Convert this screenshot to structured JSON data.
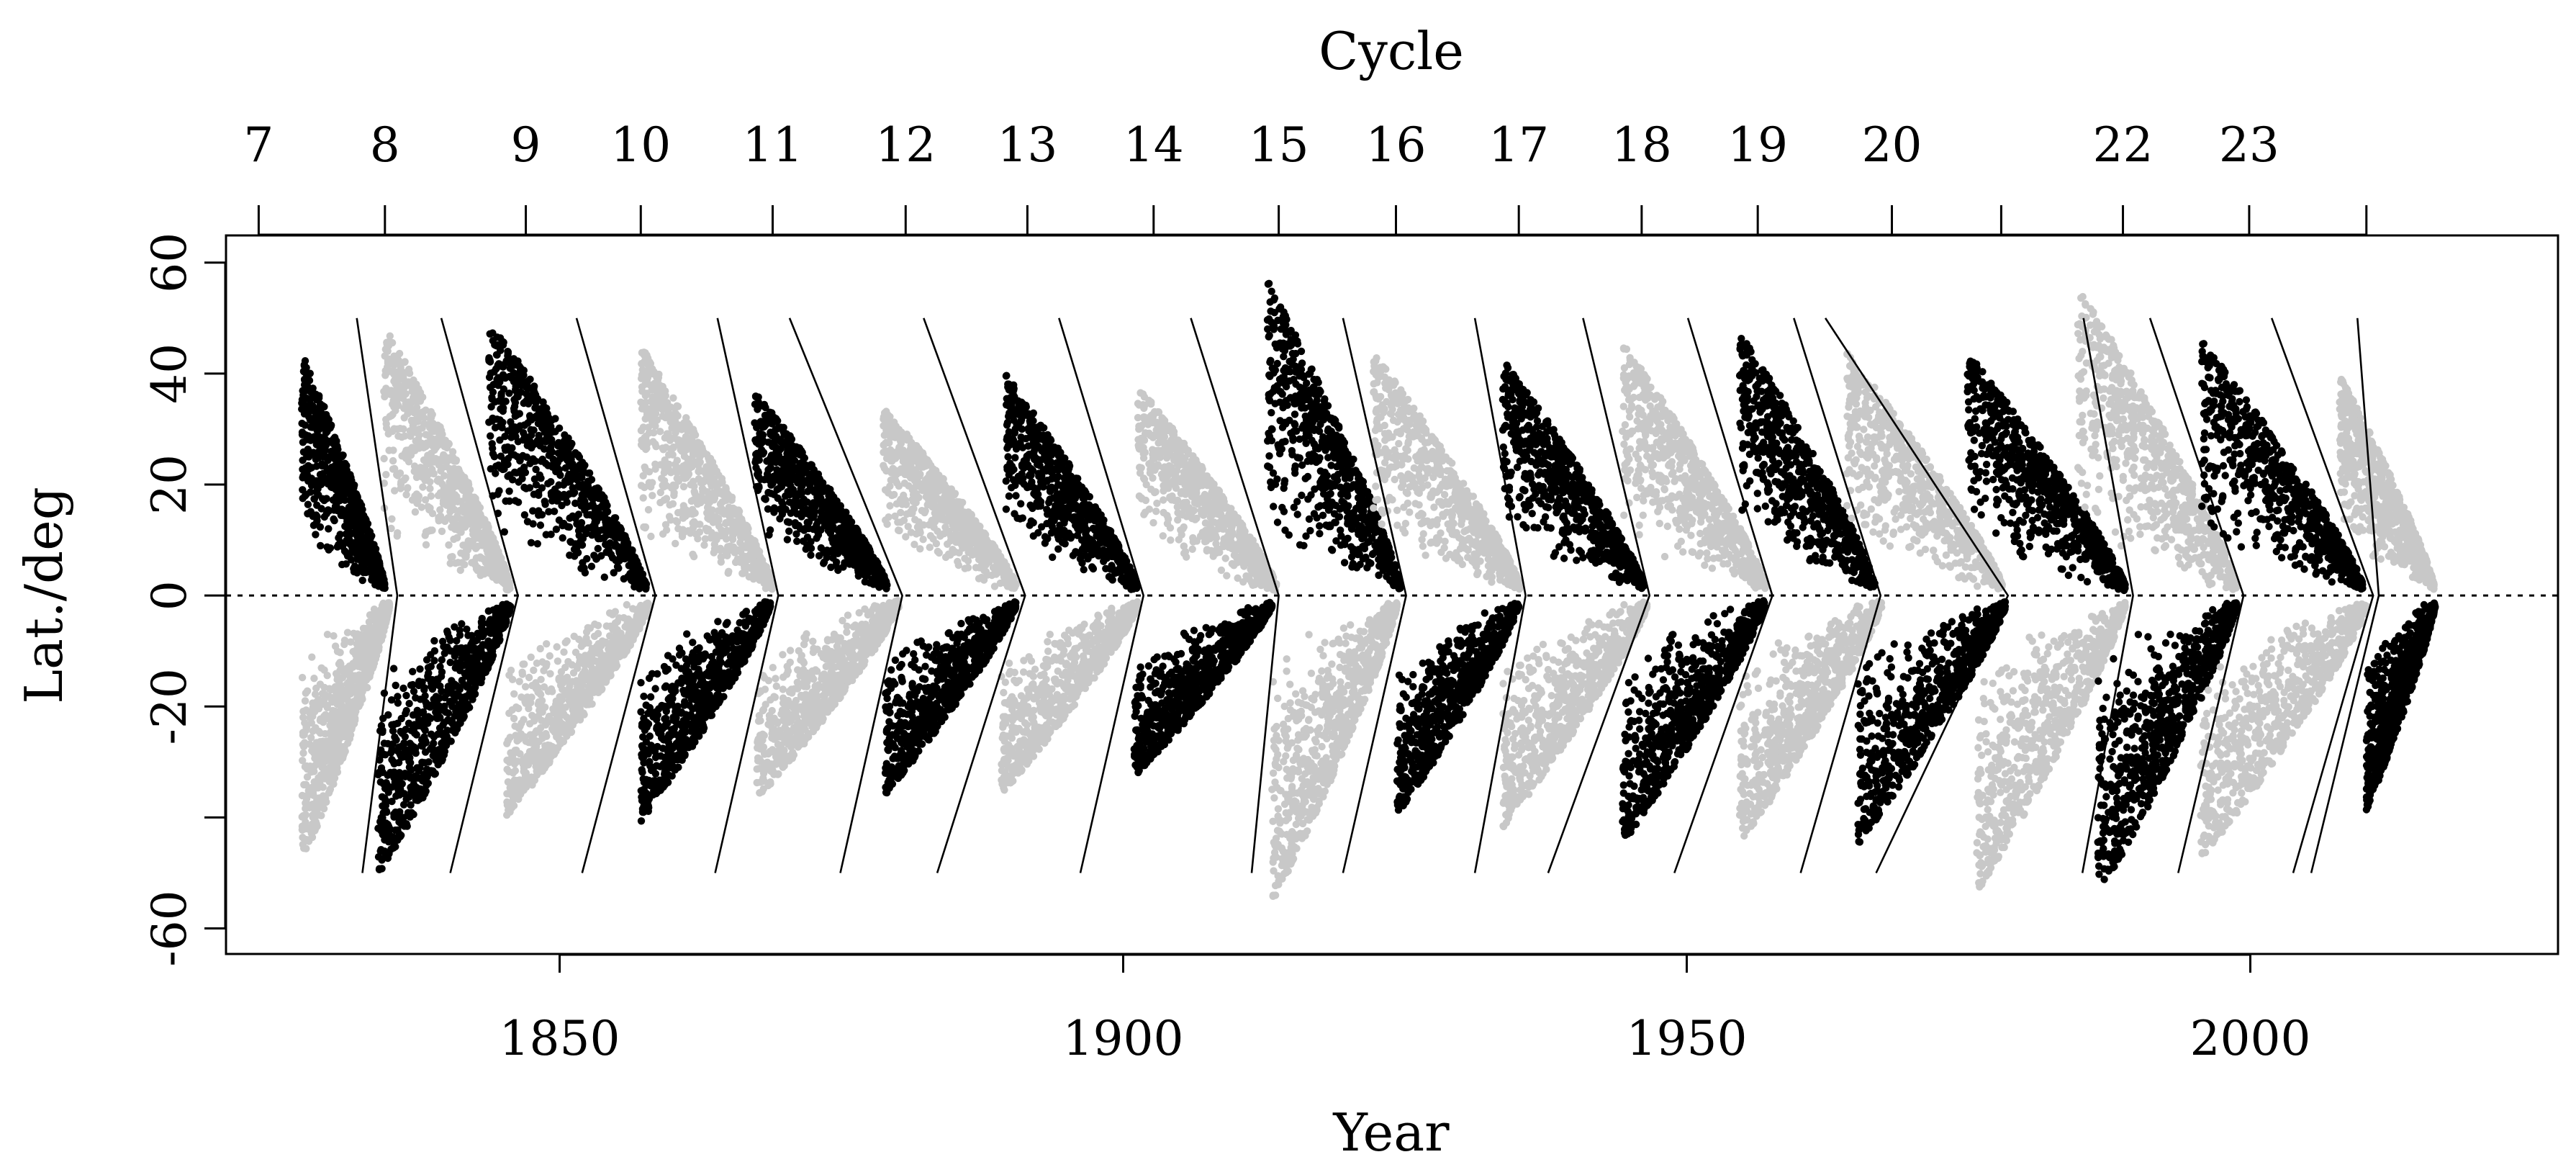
{
  "chart_data": {
    "type": "scatter",
    "title": "",
    "xlabel": "Year",
    "ylabel": "Lat./deg",
    "top_axis_label": "Cycle",
    "xlim": [
      1820.4,
      2027.3
    ],
    "ylim": [
      -64.6,
      64.9
    ],
    "x_ticks": [
      1850,
      1900,
      1950,
      2000
    ],
    "x_tick_labels": [
      "1850",
      "1900",
      "1950",
      "2000"
    ],
    "y_ticks": [
      -60,
      -40,
      -20,
      0,
      20,
      40,
      60
    ],
    "y_tick_labels": [
      "-60",
      "",
      "-20",
      "0",
      "20",
      "40",
      "60"
    ],
    "equator_line": {
      "y": 0,
      "style": "dotted"
    },
    "grid": false,
    "legend": "none",
    "colors": {
      "black_cycles": "#000000",
      "grey_cycles": "#c8c8c8",
      "axes": "#000000"
    },
    "cycle_axis": [
      {
        "label": "7",
        "year": 1823.3
      },
      {
        "label": "8",
        "year": 1834.5
      },
      {
        "label": "9",
        "year": 1847.0
      },
      {
        "label": "10",
        "year": 1857.2
      },
      {
        "label": "11",
        "year": 1868.9
      },
      {
        "label": "12",
        "year": 1880.7
      },
      {
        "label": "13",
        "year": 1891.5
      },
      {
        "label": "14",
        "year": 1902.7
      },
      {
        "label": "15",
        "year": 1913.8
      },
      {
        "label": "16",
        "year": 1924.2
      },
      {
        "label": "17",
        "year": 1935.1
      },
      {
        "label": "18",
        "year": 1946.0
      },
      {
        "label": "19",
        "year": 1956.3
      },
      {
        "label": "20",
        "year": 1968.2
      },
      {
        "label": "",
        "year": 1977.9
      },
      {
        "label": "22",
        "year": 1988.7
      },
      {
        "label": "23",
        "year": 1999.9
      },
      {
        "label": "",
        "year": 2010.3
      }
    ],
    "cycle_boundaries": [
      {
        "lat_start": 50,
        "x_north_top": 1832.0,
        "x_equator": 1835.6,
        "x_south_bottom": 1832.5
      },
      {
        "lat_start": 50,
        "x_north_top": 1839.5,
        "x_equator": 1846.3,
        "x_south_bottom": 1840.3
      },
      {
        "lat_start": 50,
        "x_north_top": 1851.5,
        "x_equator": 1858.5,
        "x_south_bottom": 1852.0
      },
      {
        "lat_start": 50,
        "x_north_top": 1864.0,
        "x_equator": 1869.4,
        "x_south_bottom": 1863.8
      },
      {
        "lat_start": 50,
        "x_north_top": 1870.4,
        "x_equator": 1880.4,
        "x_south_bottom": 1874.9
      },
      {
        "lat_start": 50,
        "x_north_top": 1882.3,
        "x_equator": 1891.3,
        "x_south_bottom": 1883.5
      },
      {
        "lat_start": 50,
        "x_north_top": 1894.3,
        "x_equator": 1901.8,
        "x_south_bottom": 1896.2
      },
      {
        "lat_start": 50,
        "x_north_top": 1906.0,
        "x_equator": 1913.8,
        "x_south_bottom": 1911.4
      },
      {
        "lat_start": 50,
        "x_north_top": 1919.5,
        "x_equator": 1925.1,
        "x_south_bottom": 1919.5
      },
      {
        "lat_start": 50,
        "x_north_top": 1931.2,
        "x_equator": 1935.7,
        "x_south_bottom": 1931.2
      },
      {
        "lat_start": 50,
        "x_north_top": 1940.8,
        "x_equator": 1946.7,
        "x_south_bottom": 1937.7
      },
      {
        "lat_start": 50,
        "x_north_top": 1950.1,
        "x_equator": 1957.6,
        "x_south_bottom": 1948.9
      },
      {
        "lat_start": 50,
        "x_north_top": 1959.5,
        "x_equator": 1967.2,
        "x_south_bottom": 1960.1
      },
      {
        "lat_start": 50,
        "x_north_top": 1962.3,
        "x_equator": 1978.5,
        "x_south_bottom": 1966.8
      },
      {
        "lat_start": 50,
        "x_north_top": 1985.2,
        "x_equator": 1989.6,
        "x_south_bottom": 1985.1
      },
      {
        "lat_start": 50,
        "x_north_top": 1991.1,
        "x_equator": 1999.4,
        "x_south_bottom": 1993.6
      },
      {
        "lat_start": 50,
        "x_north_top": 2001.9,
        "x_equator": 2010.9,
        "x_south_bottom": 2003.8
      },
      {
        "lat_start": 50,
        "x_north_top": 2009.5,
        "x_equator": 2011.4,
        "x_south_bottom": 2005.4
      }
    ],
    "clusters": [
      {
        "color": "black",
        "hemisphere": "north",
        "x_start": 1827.1,
        "x_end": 1834.5,
        "lat_max": 46
      },
      {
        "color": "grey",
        "hemisphere": "north",
        "x_start": 1834.4,
        "x_end": 1845.6,
        "lat_max": 51
      },
      {
        "color": "black",
        "hemisphere": "north",
        "x_start": 1843.7,
        "x_end": 1857.7,
        "lat_max": 52
      },
      {
        "color": "grey",
        "hemisphere": "north",
        "x_start": 1857.2,
        "x_end": 1868.9,
        "lat_max": 47
      },
      {
        "color": "black",
        "hemisphere": "north",
        "x_start": 1867.3,
        "x_end": 1879.1,
        "lat_max": 39
      },
      {
        "color": "grey",
        "hemisphere": "north",
        "x_start": 1878.7,
        "x_end": 1890.5,
        "lat_max": 36
      },
      {
        "color": "black",
        "hemisphere": "north",
        "x_start": 1889.6,
        "x_end": 1901.2,
        "lat_max": 42
      },
      {
        "color": "grey",
        "hemisphere": "north",
        "x_start": 1901.3,
        "x_end": 1913.6,
        "lat_max": 40
      },
      {
        "color": "black",
        "hemisphere": "north",
        "x_start": 1912.8,
        "x_end": 1924.6,
        "lat_max": 59
      },
      {
        "color": "grey",
        "hemisphere": "north",
        "x_start": 1922.2,
        "x_end": 1935.2,
        "lat_max": 46
      },
      {
        "color": "black",
        "hemisphere": "north",
        "x_start": 1933.6,
        "x_end": 1946.2,
        "lat_max": 45
      },
      {
        "color": "grey",
        "hemisphere": "north",
        "x_start": 1944.3,
        "x_end": 1957.0,
        "lat_max": 48
      },
      {
        "color": "black",
        "hemisphere": "north",
        "x_start": 1954.7,
        "x_end": 1966.7,
        "lat_max": 50
      },
      {
        "color": "grey",
        "hemisphere": "north",
        "x_start": 1964.2,
        "x_end": 1978.0,
        "lat_max": 46
      },
      {
        "color": "black",
        "hemisphere": "north",
        "x_start": 1974.9,
        "x_end": 1988.9,
        "lat_max": 46
      },
      {
        "color": "grey",
        "hemisphere": "north",
        "x_start": 1984.7,
        "x_end": 1998.8,
        "lat_max": 58
      },
      {
        "color": "black",
        "hemisphere": "north",
        "x_start": 1995.7,
        "x_end": 2010.0,
        "lat_max": 48
      },
      {
        "color": "grey",
        "hemisphere": "north",
        "x_start": 2007.9,
        "x_end": 2016.3,
        "lat_max": 42
      },
      {
        "color": "grey",
        "hemisphere": "south",
        "x_start": 1827.1,
        "x_end": 1834.9,
        "lat_min": -51
      },
      {
        "color": "black",
        "hemisphere": "south",
        "x_start": 1833.9,
        "x_end": 1845.7,
        "lat_min": -53
      },
      {
        "color": "grey",
        "hemisphere": "south",
        "x_start": 1845.3,
        "x_end": 1858.0,
        "lat_min": -42
      },
      {
        "color": "black",
        "hemisphere": "south",
        "x_start": 1857.2,
        "x_end": 1868.7,
        "lat_min": -43
      },
      {
        "color": "grey",
        "hemisphere": "south",
        "x_start": 1867.5,
        "x_end": 1880.1,
        "lat_min": -39
      },
      {
        "color": "black",
        "hemisphere": "south",
        "x_start": 1878.9,
        "x_end": 1890.5,
        "lat_min": -38
      },
      {
        "color": "grey",
        "hemisphere": "south",
        "x_start": 1889.2,
        "x_end": 1901.3,
        "lat_min": -38
      },
      {
        "color": "black",
        "hemisphere": "south",
        "x_start": 1900.9,
        "x_end": 1913.2,
        "lat_min": -35
      },
      {
        "color": "grey",
        "hemisphere": "south",
        "x_start": 1913.2,
        "x_end": 1924.3,
        "lat_min": -58
      },
      {
        "color": "black",
        "hemisphere": "south",
        "x_start": 1924.3,
        "x_end": 1935.1,
        "lat_min": -42
      },
      {
        "color": "grey",
        "hemisphere": "south",
        "x_start": 1933.7,
        "x_end": 1946.5,
        "lat_min": -44
      },
      {
        "color": "black",
        "hemisphere": "south",
        "x_start": 1944.3,
        "x_end": 1956.9,
        "lat_min": -47
      },
      {
        "color": "grey",
        "hemisphere": "south",
        "x_start": 1954.7,
        "x_end": 1967.3,
        "lat_min": -47
      },
      {
        "color": "black",
        "hemisphere": "south",
        "x_start": 1965.2,
        "x_end": 1978.3,
        "lat_min": -47
      },
      {
        "color": "grey",
        "hemisphere": "south",
        "x_start": 1975.7,
        "x_end": 1988.9,
        "lat_min": -56
      },
      {
        "color": "black",
        "hemisphere": "south",
        "x_start": 1986.4,
        "x_end": 1998.8,
        "lat_min": -57
      },
      {
        "color": "grey",
        "hemisphere": "south",
        "x_start": 1995.6,
        "x_end": 2010.4,
        "lat_min": -50
      },
      {
        "color": "black",
        "hemisphere": "south",
        "x_start": 2010.3,
        "x_end": 2016.4,
        "lat_min": -41
      }
    ]
  }
}
